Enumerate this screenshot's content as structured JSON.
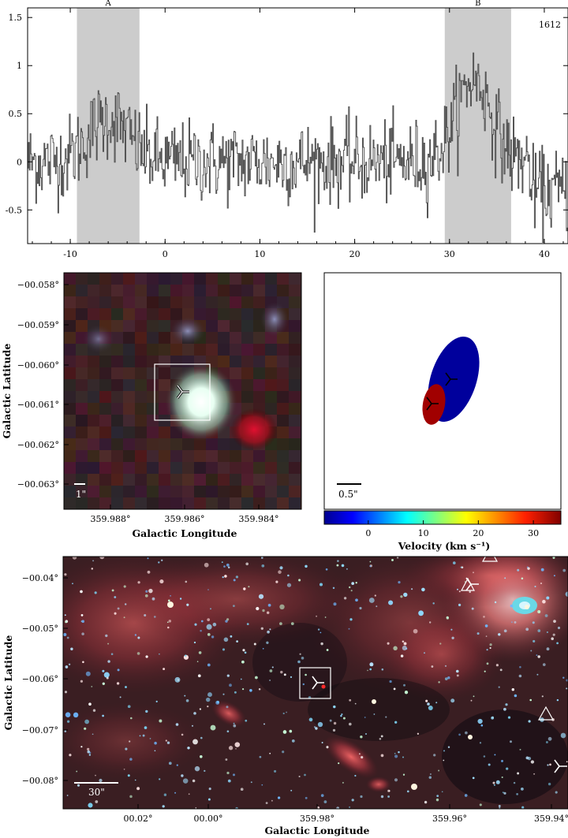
{
  "chart_data": [
    {
      "type": "line",
      "label": "1612",
      "xlim": [
        -14.5,
        42.5
      ],
      "ylim": [
        -0.85,
        1.6
      ],
      "xticks": [
        -10,
        0,
        10,
        20,
        30,
        40
      ],
      "yticks": [
        -0.5,
        0,
        0.5,
        1,
        1.5
      ],
      "ytick_labels": [
        "-0.5",
        "0",
        "0.5",
        "1",
        "1.5"
      ],
      "shaded_regions": [
        {
          "label": "A",
          "x": [
            -9.3,
            -2.7
          ]
        },
        {
          "label": "B",
          "x": [
            29.5,
            36.5
          ]
        }
      ],
      "features": [
        {
          "center": -6.0,
          "height": 0.45,
          "width": 3.0
        },
        {
          "center": 32.5,
          "height": 0.85,
          "width": 2.6
        }
      ],
      "noise_sigma": 0.21
    },
    {
      "type": "image",
      "xlabel": "Galactic Longitude",
      "ylabel": "Galactic Latitude",
      "xticks": [
        "359.988°",
        "359.986°",
        "359.984°"
      ],
      "yticks": [
        "−00.058°",
        "−00.059°",
        "−00.060°",
        "−00.061°",
        "−00.062°",
        "−00.063°"
      ],
      "scalebar": "1\""
    },
    {
      "type": "scatter",
      "xlabel": "Velocity (km s⁻¹)",
      "colorbar_ticks": [
        "0",
        "10",
        "20",
        "30"
      ],
      "colorbar_range": [
        -8,
        35
      ],
      "scalebar": "0.5\"",
      "ellipses": [
        {
          "velocity": 32.5,
          "color": "#a10000"
        },
        {
          "velocity": -6.0,
          "color": "#00009c"
        }
      ]
    },
    {
      "type": "image",
      "xlabel": "Galactic Longitude",
      "ylabel": "Galactic Latitude",
      "xticks": [
        "00.02°",
        "00.00°",
        "359.98°",
        "359.96°",
        "359.94°"
      ],
      "yticks": [
        "−00.04°",
        "−00.05°",
        "−00.06°",
        "−00.07°",
        "−00.08°"
      ],
      "scalebar": "30\""
    }
  ]
}
